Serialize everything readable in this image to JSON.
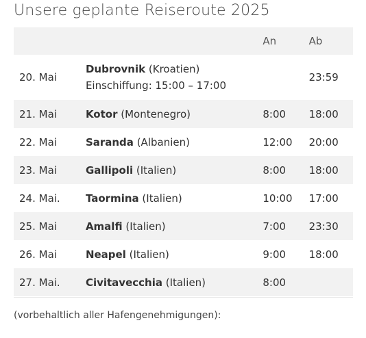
{
  "title": "Unsere geplante Reiseroute 2025",
  "table": {
    "headers": {
      "date": "",
      "port": "",
      "arrival": "An",
      "departure": "Ab"
    },
    "rows": [
      {
        "date": "20. Mai",
        "port": "Dubrovnik",
        "country": "(Kroatien)",
        "note": "Einschiffung: 15:00 – 17:00",
        "arrival": "",
        "departure": "23:59"
      },
      {
        "date": "21. Mai",
        "port": "Kotor",
        "country": "(Montenegro)",
        "arrival": "8:00",
        "departure": "18:00"
      },
      {
        "date": "22. Mai",
        "port": "Saranda",
        "country": "(Albanien)",
        "arrival": "12:00",
        "departure": "20:00"
      },
      {
        "date": "23. Mai",
        "port": "Gallipoli",
        "country": "(Italien)",
        "arrival": "8:00",
        "departure": "18:00"
      },
      {
        "date": "24. Mai.",
        "port": "Taormina",
        "country": "(Italien)",
        "arrival": "10:00",
        "departure": "17:00"
      },
      {
        "date": "25. Mai",
        "port": "Amalfi",
        "country": "(Italien)",
        "arrival": "7:00",
        "departure": "23:30"
      },
      {
        "date": "26. Mai",
        "port": "Neapel",
        "country": "(Italien)",
        "arrival": "9:00",
        "departure": "18:00"
      },
      {
        "date": "27. Mai.",
        "port": "Civitavecchia",
        "country": "(Italien)",
        "arrival": "8:00",
        "departure": ""
      }
    ]
  },
  "footnote": "(vorbehaltlich aller Hafengenehmigungen):"
}
